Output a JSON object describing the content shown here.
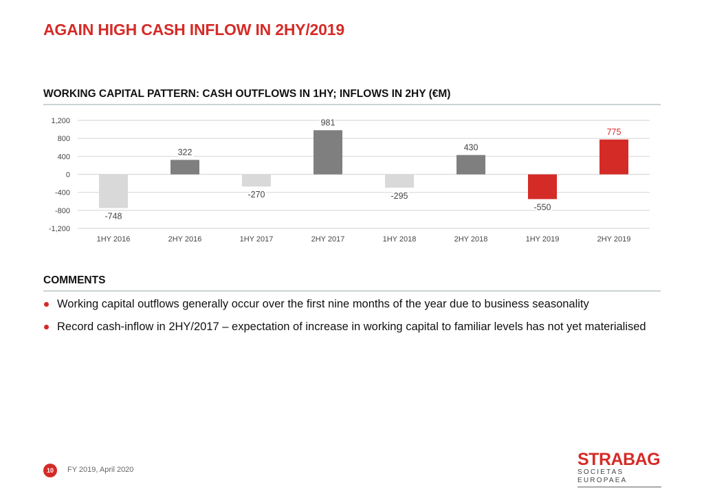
{
  "page": {
    "title": "AGAIN HIGH CASH INFLOW IN 2HY/2019",
    "chart_heading": "WORKING CAPITAL PATTERN: CASH OUTFLOWS IN 1HY; INFLOWS IN 2HY (€M)",
    "comments_heading": "COMMENTS",
    "comments": [
      "Working capital outflows generally occur over the first nine months of the year due to business seasonality",
      "Record cash-inflow in 2HY/2017 – expectation of increase in working capital to familiar levels has not yet materialised"
    ],
    "footer": {
      "page_number": "10",
      "text": "FY 2019, April 2020"
    },
    "logo": {
      "name": "STRABAG",
      "subtitle": "SOCIETAS EUROPAEA"
    }
  },
  "colors": {
    "accent": "#d52b27",
    "outflow_gray": "#d9d9d9",
    "inflow_gray": "#7f7f7f",
    "highlight_red": "#d52b27",
    "grid": "#d9d9d9"
  },
  "chart_data": {
    "type": "bar",
    "title": "WORKING CAPITAL PATTERN: CASH OUTFLOWS IN 1HY; INFLOWS IN 2HY (€M)",
    "xlabel": "",
    "ylabel": "",
    "categories": [
      "1HY 2016",
      "2HY 2016",
      "1HY 2017",
      "2HY 2017",
      "1HY 2018",
      "2HY 2018",
      "1HY 2019",
      "2HY 2019"
    ],
    "values": [
      -748,
      322,
      -270,
      981,
      -295,
      430,
      -550,
      775
    ],
    "bar_colors": [
      "#d9d9d9",
      "#7f7f7f",
      "#d9d9d9",
      "#7f7f7f",
      "#d9d9d9",
      "#7f7f7f",
      "#d52b27",
      "#d52b27"
    ],
    "label_colors": [
      "#444444",
      "#444444",
      "#444444",
      "#444444",
      "#444444",
      "#444444",
      "#444444",
      "#d52b27"
    ],
    "ylim": [
      -1200,
      1200
    ],
    "yticks": [
      1200,
      800,
      400,
      0,
      -400,
      -800,
      -1200
    ],
    "ytick_labels": [
      "1,200",
      "800",
      "400",
      "0",
      "-400",
      "-800",
      "-1,200"
    ],
    "grid": true,
    "legend": "none"
  }
}
